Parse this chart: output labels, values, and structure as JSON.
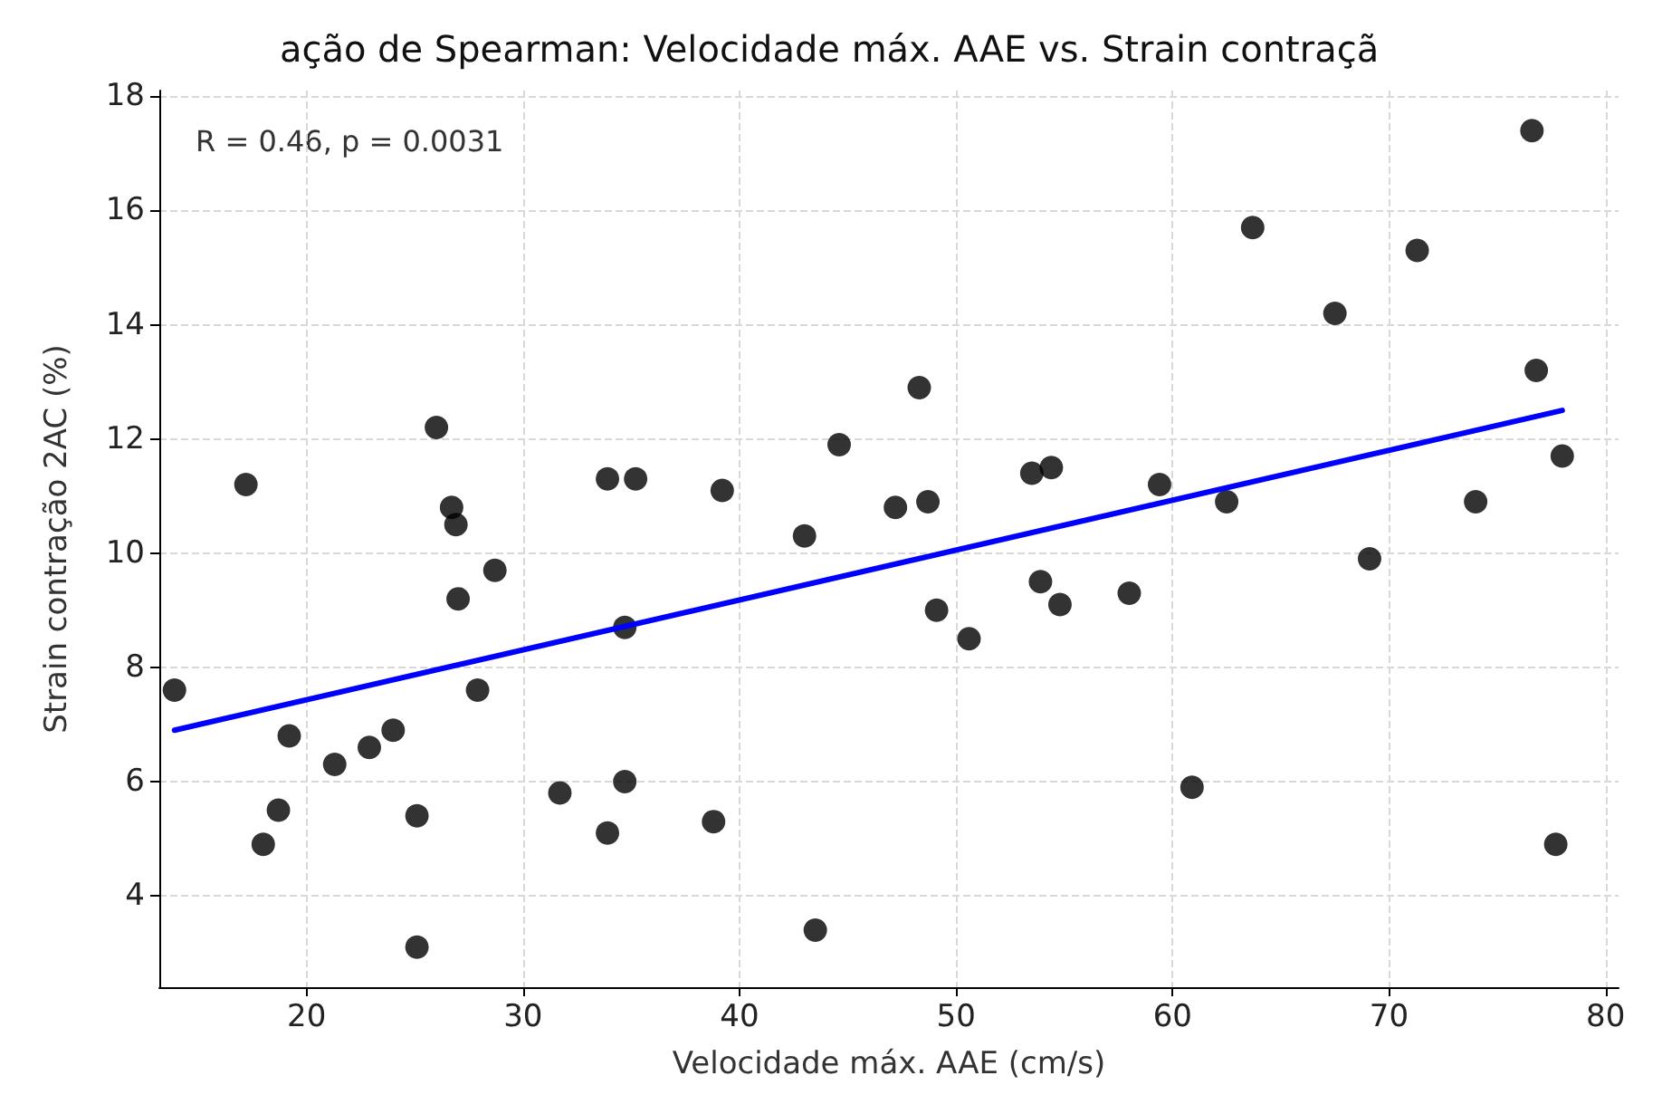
{
  "chart_data": {
    "type": "scatter",
    "title": "ação de Spearman: Velocidade máx. AAE vs. Strain contraçã",
    "xlabel": "Velocidade máx. AAE (cm/s)",
    "ylabel": "Strain contração 2AC (%)",
    "annotations": [
      "R = 0.46, p = 0.0031"
    ],
    "xlim": [
      13.2,
      80.6
    ],
    "ylim": [
      2.4,
      18.1
    ],
    "xticks": [
      20,
      30,
      40,
      50,
      60,
      70,
      80
    ],
    "yticks": [
      4,
      6,
      8,
      10,
      12,
      14,
      16,
      18
    ],
    "grid": true,
    "marker": "circle",
    "series": [
      {
        "color": "#000000",
        "x": [
          13.9,
          17.2,
          18.0,
          18.7,
          19.2,
          21.3,
          22.9,
          24.0,
          25.1,
          25.1,
          26.0,
          26.7,
          26.9,
          27.0,
          27.9,
          28.7,
          31.7,
          33.9,
          33.9,
          34.7,
          34.7,
          35.2,
          38.8,
          39.2,
          43.0,
          43.5,
          44.6,
          47.2,
          48.3,
          48.7,
          49.1,
          50.6,
          53.5,
          54.4,
          53.9,
          54.8,
          58.0,
          59.4,
          60.9,
          62.5,
          63.7,
          67.5,
          69.1,
          71.3,
          74.0,
          76.6,
          76.8,
          77.7,
          78.0
        ],
        "values": [
          7.6,
          11.2,
          4.9,
          5.5,
          6.8,
          6.3,
          6.6,
          6.9,
          5.4,
          3.1,
          12.2,
          10.8,
          10.5,
          9.2,
          7.6,
          9.7,
          5.8,
          5.1,
          11.3,
          8.7,
          6.0,
          11.3,
          5.3,
          11.1,
          10.3,
          3.4,
          11.9,
          10.8,
          12.9,
          10.9,
          9.0,
          8.5,
          11.4,
          11.5,
          9.5,
          9.1,
          9.3,
          11.2,
          5.9,
          10.9,
          15.7,
          14.2,
          9.9,
          15.3,
          10.9,
          17.4,
          13.2,
          4.9,
          11.7
        ]
      },
      {
        "type": "line",
        "color": "#0000ff",
        "x": [
          13.9,
          78.0
        ],
        "values": [
          6.9,
          12.5
        ],
        "marker": "none",
        "line_style": "solid"
      }
    ]
  }
}
